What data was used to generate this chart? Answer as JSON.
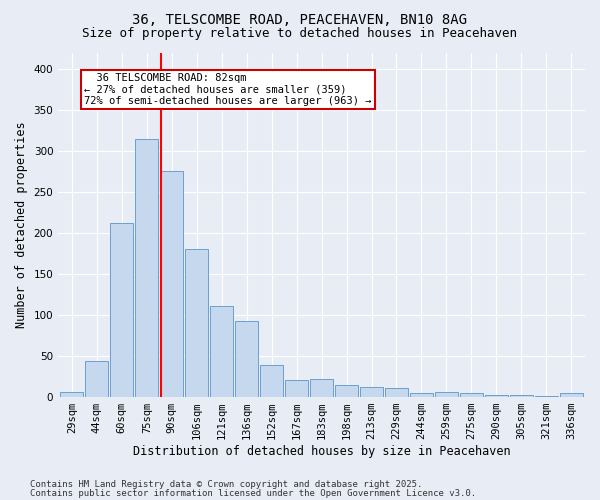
{
  "title_line1": "36, TELSCOMBE ROAD, PEACEHAVEN, BN10 8AG",
  "title_line2": "Size of property relative to detached houses in Peacehaven",
  "xlabel": "Distribution of detached houses by size in Peacehaven",
  "ylabel": "Number of detached properties",
  "categories": [
    "29sqm",
    "44sqm",
    "60sqm",
    "75sqm",
    "90sqm",
    "106sqm",
    "121sqm",
    "136sqm",
    "152sqm",
    "167sqm",
    "183sqm",
    "198sqm",
    "213sqm",
    "229sqm",
    "244sqm",
    "259sqm",
    "275sqm",
    "290sqm",
    "305sqm",
    "321sqm",
    "336sqm"
  ],
  "values": [
    5,
    43,
    212,
    315,
    275,
    180,
    110,
    92,
    38,
    20,
    22,
    14,
    12,
    10,
    4,
    6,
    4,
    2,
    2,
    1,
    4
  ],
  "bar_color": "#c5d8ee",
  "bar_edge_color": "#6a9fd0",
  "red_line_x": 3.57,
  "annotation_text": "  36 TELSCOMBE ROAD: 82sqm  \n← 27% of detached houses are smaller (359)\n72% of semi-detached houses are larger (963) →",
  "annotation_box_color": "#ffffff",
  "annotation_box_edge_color": "#cc0000",
  "ylim": [
    0,
    420
  ],
  "yticks": [
    0,
    50,
    100,
    150,
    200,
    250,
    300,
    350,
    400
  ],
  "background_color": "#e8edf5",
  "plot_bg_color": "#e8edf5",
  "footer_line1": "Contains HM Land Registry data © Crown copyright and database right 2025.",
  "footer_line2": "Contains public sector information licensed under the Open Government Licence v3.0.",
  "grid_color": "#ffffff",
  "title_fontsize": 10,
  "subtitle_fontsize": 9,
  "axis_label_fontsize": 8.5,
  "tick_fontsize": 7.5,
  "footer_fontsize": 6.5,
  "annotation_fontsize": 7.5
}
